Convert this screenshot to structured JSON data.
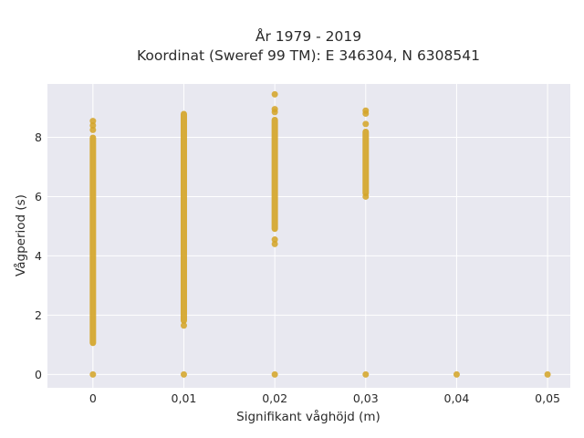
{
  "chart_data": {
    "type": "scatter",
    "title_line1": "År 1979 - 2019",
    "title_line2": "Koordinat (Sweref 99 TM): E 346304, N 6308541",
    "xlabel": "Signifikant våghöjd (m)",
    "ylabel": "Vågperiod (s)",
    "xlim": [
      -0.005,
      0.0525
    ],
    "ylim": [
      -0.45,
      9.8
    ],
    "x_ticks": [
      0,
      0.01,
      0.02,
      0.03,
      0.04,
      0.05
    ],
    "x_tick_labels": [
      "0",
      "0,01",
      "0,02",
      "0,03",
      "0,04",
      "0,05"
    ],
    "y_ticks": [
      0,
      2,
      4,
      6,
      8
    ],
    "y_tick_labels": [
      "0",
      "2",
      "4",
      "6",
      "8"
    ],
    "grid": true,
    "background": "#e8e8f0",
    "marker_color": "#d4a52a",
    "series": [
      {
        "x": [
          0,
          0.01,
          0.02,
          0.03,
          0.04,
          0.05
        ],
        "y_ranges": [
          [
            1.05,
            8.0
          ],
          [
            1.8,
            8.8
          ],
          [
            4.9,
            8.6
          ],
          [
            6.1,
            8.2
          ],
          null,
          null
        ],
        "y_points": [
          [
            0,
            8.25,
            8.4,
            8.55
          ],
          [
            0,
            1.65
          ],
          [
            0,
            4.4,
            4.55,
            8.85,
            8.95,
            9.45
          ],
          [
            0,
            6.0,
            8.45,
            8.8,
            8.9
          ],
          [
            0
          ],
          [
            0
          ]
        ]
      }
    ]
  }
}
